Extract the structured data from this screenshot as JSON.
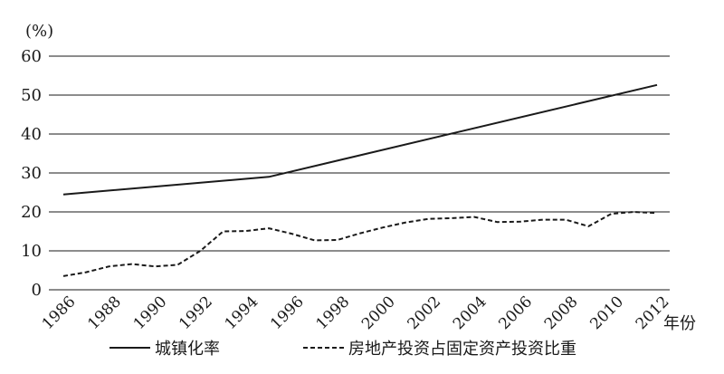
{
  "chart_data": {
    "type": "line",
    "y_unit": "(%)",
    "x_axis_label": "年份",
    "ylim": [
      0,
      60
    ],
    "y_ticks": [
      0,
      10,
      20,
      30,
      40,
      50,
      60
    ],
    "x_ticks": [
      1986,
      1988,
      1990,
      1992,
      1994,
      1996,
      1998,
      2000,
      2002,
      2004,
      2006,
      2008,
      2010,
      2012
    ],
    "xlim": [
      1986,
      2012
    ],
    "grid": "horizontal",
    "legend_position": "bottom",
    "series": [
      {
        "name": "城镇化率",
        "style": "solid",
        "color": "#1a1a1a",
        "x": [
          1986,
          1995,
          2012
        ],
        "y": [
          24.5,
          29.0,
          52.6
        ]
      },
      {
        "name": "房地产投资占固定资产投资比重",
        "style": "dashed",
        "color": "#1a1a1a",
        "x": [
          1986,
          1987,
          1988,
          1989,
          1990,
          1991,
          1992,
          1993,
          1994,
          1995,
          1996,
          1997,
          1998,
          1999,
          2000,
          2001,
          2002,
          2003,
          2004,
          2005,
          2006,
          2007,
          2008,
          2009,
          2010,
          2011,
          2012
        ],
        "y": [
          3.5,
          4.5,
          6.0,
          6.6,
          6.0,
          6.4,
          10.0,
          15.0,
          15.1,
          15.8,
          14.4,
          12.7,
          12.8,
          14.5,
          16.0,
          17.3,
          18.2,
          18.4,
          18.7,
          17.4,
          17.5,
          18.0,
          18.0,
          16.3,
          19.5,
          20.0,
          19.7
        ]
      }
    ]
  }
}
